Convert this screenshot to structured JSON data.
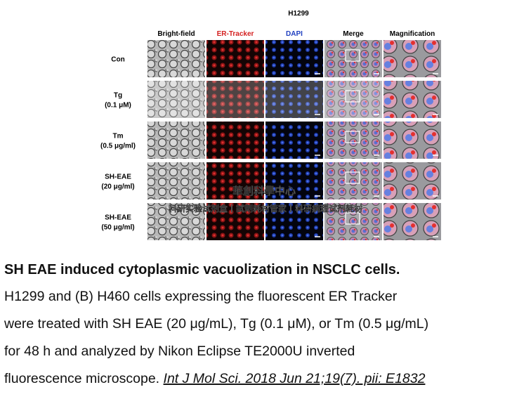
{
  "figure": {
    "title": "H1299",
    "columns": [
      {
        "label": "Bright-field",
        "color": "#000000"
      },
      {
        "label": "ER-Tracker",
        "color": "#d42020"
      },
      {
        "label": "DAPI",
        "color": "#2040c0"
      },
      {
        "label": "Merge",
        "color": "#000000"
      },
      {
        "label": "Magnification",
        "color": "#000000"
      }
    ],
    "rows": [
      {
        "name": "Con"
      },
      {
        "name": "Tg",
        "dose": "(0.1 μM)"
      },
      {
        "name": "Tm",
        "dose": "(0.5 μg/ml)"
      },
      {
        "name": "SH-EAE",
        "dose": "(20 μg/ml)"
      },
      {
        "name": "SH-EAE",
        "dose": "(50 μg/ml)"
      }
    ]
  },
  "watermark": {
    "line1": "華創科學中心",
    "line2": "科研实验试剂盒丨試劑耗材管家丨科研病理试剂耗材"
  },
  "caption": {
    "heading": "SH EAE induced cytoplasmic vacuolization in NSCLC cells.",
    "lines": [
      "H1299 and (B) H460 cells expressing the fluorescent ER Tracker",
      "were treated with SH EAE (20 μg/mL), Tg (0.1 μM), or Tm (0.5 μg/mL)",
      "for 48 h and analyzed by Nikon Eclipse TE2000U inverted"
    ],
    "last_line": "fluorescence microscope. ",
    "citation": "Int J Mol Sci. 2018 Jun 21;19(7). pii: E1832"
  }
}
